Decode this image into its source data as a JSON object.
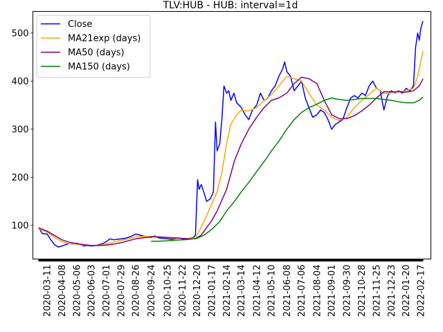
{
  "chart_data": {
    "type": "line",
    "title": "TLV:HUB - HUB: interval=1d",
    "xlabel": "",
    "ylabel": "",
    "ylim": [
      30,
      545
    ],
    "xlim": [
      "2020-02-13",
      "2022-03-08"
    ],
    "grid": false,
    "legend": "top-left",
    "x_tick_labels": [
      "2020-03-11",
      "2020-04-08",
      "2020-05-06",
      "2020-06-03",
      "2020-07-01",
      "2020-07-29",
      "2020-08-26",
      "2020-09-24",
      "2020-10-25",
      "2020-11-22",
      "2020-12-20",
      "2021-01-17",
      "2021-02-14",
      "2021-03-14",
      "2021-04-12",
      "2021-05-10",
      "2021-06-08",
      "2021-07-06",
      "2021-08-04",
      "2021-09-01",
      "2021-09-30",
      "2021-10-28",
      "2021-11-25",
      "2021-12-23",
      "2022-01-20",
      "2022-02-17"
    ],
    "y_ticks": [
      100,
      200,
      300,
      400,
      500
    ],
    "series": [
      {
        "name": "Close",
        "color": "#0000ff",
        "points": [
          [
            "2020-02-24",
            95
          ],
          [
            "2020-03-02",
            83
          ],
          [
            "2020-03-11",
            82
          ],
          [
            "2020-03-18",
            70
          ],
          [
            "2020-03-25",
            60
          ],
          [
            "2020-04-01",
            55
          ],
          [
            "2020-04-08",
            57
          ],
          [
            "2020-04-15",
            60
          ],
          [
            "2020-04-22",
            62
          ],
          [
            "2020-04-29",
            61
          ],
          [
            "2020-05-06",
            63
          ],
          [
            "2020-05-13",
            60
          ],
          [
            "2020-05-20",
            57
          ],
          [
            "2020-05-27",
            58
          ],
          [
            "2020-06-03",
            57
          ],
          [
            "2020-06-10",
            58
          ],
          [
            "2020-06-17",
            60
          ],
          [
            "2020-06-24",
            62
          ],
          [
            "2020-07-01",
            66
          ],
          [
            "2020-07-08",
            72
          ],
          [
            "2020-07-15",
            70
          ],
          [
            "2020-07-22",
            71
          ],
          [
            "2020-07-29",
            72
          ],
          [
            "2020-08-05",
            73
          ],
          [
            "2020-08-12",
            75
          ],
          [
            "2020-08-19",
            78
          ],
          [
            "2020-08-26",
            82
          ],
          [
            "2020-09-02",
            80
          ],
          [
            "2020-09-09",
            78
          ],
          [
            "2020-09-16",
            76
          ],
          [
            "2020-09-24",
            75
          ],
          [
            "2020-10-01",
            78
          ],
          [
            "2020-10-08",
            74
          ],
          [
            "2020-10-15",
            73
          ],
          [
            "2020-10-25",
            72
          ],
          [
            "2020-11-01",
            71
          ],
          [
            "2020-11-08",
            72
          ],
          [
            "2020-11-15",
            74
          ],
          [
            "2020-11-22",
            72
          ],
          [
            "2020-11-29",
            70
          ],
          [
            "2020-12-06",
            73
          ],
          [
            "2020-12-13",
            75
          ],
          [
            "2020-12-17",
            80
          ],
          [
            "2020-12-21",
            195
          ],
          [
            "2020-12-24",
            175
          ],
          [
            "2020-12-28",
            185
          ],
          [
            "2021-01-03",
            165
          ],
          [
            "2021-01-07",
            150
          ],
          [
            "2021-01-14",
            155
          ],
          [
            "2021-01-17",
            162
          ],
          [
            "2021-01-20",
            170
          ],
          [
            "2021-01-24",
            315
          ],
          [
            "2021-01-27",
            255
          ],
          [
            "2021-02-01",
            270
          ],
          [
            "2021-02-05",
            320
          ],
          [
            "2021-02-09",
            390
          ],
          [
            "2021-02-14",
            375
          ],
          [
            "2021-02-18",
            380
          ],
          [
            "2021-02-22",
            360
          ],
          [
            "2021-02-28",
            375
          ],
          [
            "2021-03-05",
            355
          ],
          [
            "2021-03-14",
            345
          ],
          [
            "2021-03-21",
            330
          ],
          [
            "2021-03-28",
            320
          ],
          [
            "2021-04-04",
            340
          ],
          [
            "2021-04-12",
            350
          ],
          [
            "2021-04-19",
            375
          ],
          [
            "2021-04-26",
            360
          ],
          [
            "2021-05-03",
            365
          ],
          [
            "2021-05-10",
            380
          ],
          [
            "2021-05-17",
            390
          ],
          [
            "2021-05-24",
            410
          ],
          [
            "2021-05-31",
            425
          ],
          [
            "2021-06-04",
            440
          ],
          [
            "2021-06-08",
            420
          ],
          [
            "2021-06-15",
            410
          ],
          [
            "2021-06-22",
            380
          ],
          [
            "2021-06-29",
            390
          ],
          [
            "2021-07-06",
            400
          ],
          [
            "2021-07-13",
            365
          ],
          [
            "2021-07-20",
            345
          ],
          [
            "2021-07-27",
            325
          ],
          [
            "2021-08-04",
            330
          ],
          [
            "2021-08-11",
            340
          ],
          [
            "2021-08-18",
            335
          ],
          [
            "2021-08-25",
            320
          ],
          [
            "2021-09-01",
            300
          ],
          [
            "2021-09-08",
            310
          ],
          [
            "2021-09-15",
            315
          ],
          [
            "2021-09-22",
            320
          ],
          [
            "2021-09-30",
            345
          ],
          [
            "2021-10-07",
            365
          ],
          [
            "2021-10-14",
            370
          ],
          [
            "2021-10-21",
            365
          ],
          [
            "2021-10-28",
            375
          ],
          [
            "2021-11-04",
            370
          ],
          [
            "2021-11-11",
            390
          ],
          [
            "2021-11-18",
            400
          ],
          [
            "2021-11-25",
            385
          ],
          [
            "2021-12-02",
            380
          ],
          [
            "2021-12-09",
            340
          ],
          [
            "2021-12-16",
            370
          ],
          [
            "2021-12-23",
            380
          ],
          [
            "2021-12-30",
            375
          ],
          [
            "2022-01-06",
            380
          ],
          [
            "2022-01-13",
            375
          ],
          [
            "2022-01-20",
            385
          ],
          [
            "2022-01-27",
            380
          ],
          [
            "2022-02-03",
            390
          ],
          [
            "2022-02-07",
            470
          ],
          [
            "2022-02-11",
            500
          ],
          [
            "2022-02-14",
            485
          ],
          [
            "2022-02-17",
            510
          ],
          [
            "2022-02-21",
            525
          ]
        ]
      },
      {
        "name": "MA21exp (days)",
        "color": "#ffa500",
        "points": [
          [
            "2020-02-24",
            93
          ],
          [
            "2020-03-11",
            86
          ],
          [
            "2020-03-25",
            75
          ],
          [
            "2020-04-08",
            66
          ],
          [
            "2020-04-22",
            62
          ],
          [
            "2020-05-06",
            61
          ],
          [
            "2020-05-20",
            59
          ],
          [
            "2020-06-03",
            58
          ],
          [
            "2020-06-17",
            59
          ],
          [
            "2020-07-01",
            61
          ],
          [
            "2020-07-15",
            65
          ],
          [
            "2020-07-29",
            69
          ],
          [
            "2020-08-12",
            72
          ],
          [
            "2020-08-26",
            76
          ],
          [
            "2020-09-09",
            77
          ],
          [
            "2020-09-24",
            77
          ],
          [
            "2020-10-08",
            76
          ],
          [
            "2020-10-25",
            74
          ],
          [
            "2020-11-08",
            73
          ],
          [
            "2020-11-22",
            73
          ],
          [
            "2020-12-06",
            73
          ],
          [
            "2020-12-17",
            74
          ],
          [
            "2020-12-24",
            88
          ],
          [
            "2021-01-03",
            110
          ],
          [
            "2021-01-17",
            145
          ],
          [
            "2021-01-27",
            170
          ],
          [
            "2021-02-05",
            210
          ],
          [
            "2021-02-14",
            270
          ],
          [
            "2021-02-22",
            310
          ],
          [
            "2021-03-05",
            330
          ],
          [
            "2021-03-14",
            340
          ],
          [
            "2021-03-28",
            338
          ],
          [
            "2021-04-12",
            345
          ],
          [
            "2021-04-26",
            360
          ],
          [
            "2021-05-10",
            372
          ],
          [
            "2021-05-24",
            390
          ],
          [
            "2021-06-08",
            410
          ],
          [
            "2021-06-22",
            405
          ],
          [
            "2021-07-06",
            400
          ],
          [
            "2021-07-20",
            375
          ],
          [
            "2021-08-04",
            350
          ],
          [
            "2021-08-18",
            340
          ],
          [
            "2021-09-01",
            325
          ],
          [
            "2021-09-15",
            318
          ],
          [
            "2021-09-30",
            325
          ],
          [
            "2021-10-14",
            345
          ],
          [
            "2021-10-28",
            360
          ],
          [
            "2021-11-11",
            372
          ],
          [
            "2021-11-25",
            385
          ],
          [
            "2021-12-09",
            375
          ],
          [
            "2021-12-23",
            375
          ],
          [
            "2022-01-06",
            378
          ],
          [
            "2022-01-20",
            380
          ],
          [
            "2022-02-03",
            385
          ],
          [
            "2022-02-11",
            410
          ],
          [
            "2022-02-21",
            462
          ]
        ]
      },
      {
        "name": "MA50 (days)",
        "color": "#800080",
        "points": [
          [
            "2020-02-24",
            95
          ],
          [
            "2020-03-11",
            88
          ],
          [
            "2020-03-25",
            79
          ],
          [
            "2020-04-08",
            70
          ],
          [
            "2020-04-22",
            65
          ],
          [
            "2020-05-06",
            62
          ],
          [
            "2020-05-20",
            60
          ],
          [
            "2020-06-03",
            58
          ],
          [
            "2020-06-17",
            58
          ],
          [
            "2020-07-01",
            59
          ],
          [
            "2020-07-15",
            61
          ],
          [
            "2020-07-29",
            64
          ],
          [
            "2020-08-12",
            68
          ],
          [
            "2020-08-26",
            72
          ],
          [
            "2020-09-09",
            74
          ],
          [
            "2020-09-24",
            76
          ],
          [
            "2020-10-08",
            76
          ],
          [
            "2020-10-25",
            75
          ],
          [
            "2020-11-08",
            74
          ],
          [
            "2020-11-22",
            73
          ],
          [
            "2020-12-06",
            72
          ],
          [
            "2020-12-17",
            72
          ],
          [
            "2020-12-28",
            80
          ],
          [
            "2021-01-17",
            110
          ],
          [
            "2021-01-27",
            130
          ],
          [
            "2021-02-14",
            175
          ],
          [
            "2021-03-01",
            235
          ],
          [
            "2021-03-14",
            270
          ],
          [
            "2021-03-28",
            300
          ],
          [
            "2021-04-12",
            325
          ],
          [
            "2021-04-26",
            345
          ],
          [
            "2021-05-10",
            360
          ],
          [
            "2021-05-24",
            365
          ],
          [
            "2021-06-08",
            375
          ],
          [
            "2021-06-22",
            395
          ],
          [
            "2021-07-06",
            408
          ],
          [
            "2021-07-20",
            405
          ],
          [
            "2021-08-04",
            395
          ],
          [
            "2021-08-18",
            360
          ],
          [
            "2021-09-01",
            330
          ],
          [
            "2021-09-15",
            322
          ],
          [
            "2021-09-30",
            322
          ],
          [
            "2021-10-14",
            328
          ],
          [
            "2021-10-28",
            338
          ],
          [
            "2021-11-11",
            350
          ],
          [
            "2021-11-25",
            365
          ],
          [
            "2021-12-09",
            378
          ],
          [
            "2021-12-23",
            378
          ],
          [
            "2022-01-06",
            378
          ],
          [
            "2022-01-20",
            377
          ],
          [
            "2022-02-03",
            380
          ],
          [
            "2022-02-14",
            390
          ],
          [
            "2022-02-21",
            405
          ]
        ]
      },
      {
        "name": "MA150 (days)",
        "color": "#008000",
        "points": [
          [
            "2020-09-24",
            67
          ],
          [
            "2020-10-08",
            67
          ],
          [
            "2020-10-25",
            68
          ],
          [
            "2020-11-08",
            69
          ],
          [
            "2020-11-22",
            70
          ],
          [
            "2020-12-06",
            71
          ],
          [
            "2020-12-20",
            73
          ],
          [
            "2021-01-03",
            80
          ],
          [
            "2021-01-17",
            92
          ],
          [
            "2021-02-01",
            108
          ],
          [
            "2021-02-14",
            130
          ],
          [
            "2021-03-01",
            150
          ],
          [
            "2021-03-14",
            170
          ],
          [
            "2021-04-01",
            195
          ],
          [
            "2021-04-12",
            212
          ],
          [
            "2021-05-01",
            240
          ],
          [
            "2021-05-10",
            255
          ],
          [
            "2021-05-24",
            275
          ],
          [
            "2021-06-08",
            300
          ],
          [
            "2021-06-22",
            320
          ],
          [
            "2021-07-06",
            335
          ],
          [
            "2021-07-20",
            345
          ],
          [
            "2021-08-04",
            352
          ],
          [
            "2021-08-18",
            360
          ],
          [
            "2021-09-01",
            365
          ],
          [
            "2021-09-15",
            362
          ],
          [
            "2021-09-30",
            360
          ],
          [
            "2021-10-14",
            362
          ],
          [
            "2021-10-28",
            364
          ],
          [
            "2021-11-11",
            364
          ],
          [
            "2021-11-25",
            364
          ],
          [
            "2021-12-09",
            362
          ],
          [
            "2021-12-23",
            360
          ],
          [
            "2022-01-06",
            357
          ],
          [
            "2022-01-20",
            355
          ],
          [
            "2022-02-03",
            355
          ],
          [
            "2022-02-14",
            360
          ],
          [
            "2022-02-21",
            367
          ]
        ]
      }
    ]
  }
}
